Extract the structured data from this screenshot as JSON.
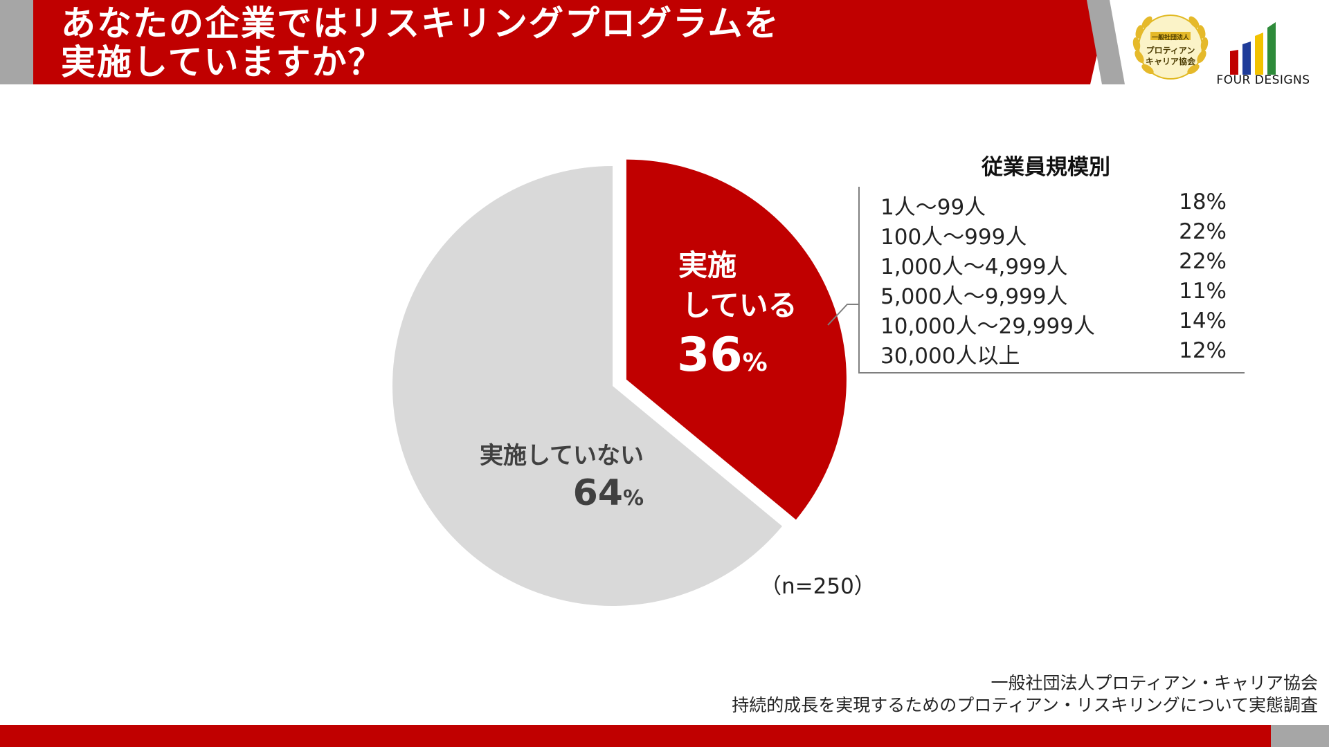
{
  "header": {
    "title_line1": "あなたの企業ではリスキリングプログラムを",
    "title_line2": "実施していますか？"
  },
  "logos": {
    "badge_line1": "一般社団法人",
    "badge_line2": "プロティアン",
    "badge_line3": "キャリア協会",
    "brand_text": "FOUR DESIGNS",
    "brand_bar_colors": [
      "#c00000",
      "#1f3c99",
      "#f2c200",
      "#2e8b3a"
    ]
  },
  "chart_data": {
    "type": "pie",
    "slices": [
      {
        "label_line1": "実施",
        "label_line2": "している",
        "value": 36,
        "value_text": "36",
        "unit": "%",
        "color": "#c00000",
        "exploded": true
      },
      {
        "label": "実施していない",
        "value": 64,
        "value_text": "64",
        "unit": "%",
        "color": "#d9d9d9",
        "exploded": false
      }
    ],
    "sample_size": "（n=250）"
  },
  "breakdown": {
    "title": "従業員規模別",
    "rows": [
      {
        "label": "1人〜99人",
        "value": "18%"
      },
      {
        "label": "100人〜999人",
        "value": "22%"
      },
      {
        "label": "1,000人〜4,999人",
        "value": "22%"
      },
      {
        "label": "5,000人〜9,999人",
        "value": "11%"
      },
      {
        "label": "10,000人〜29,999人",
        "value": "14%"
      },
      {
        "label": "30,000人以上",
        "value": "12%"
      }
    ]
  },
  "footer": {
    "source_line1": "一般社団法人プロティアン・キャリア協会",
    "source_line2": "持続的成長を実現するためのプロティアン・リスキリングについて実態調査"
  }
}
